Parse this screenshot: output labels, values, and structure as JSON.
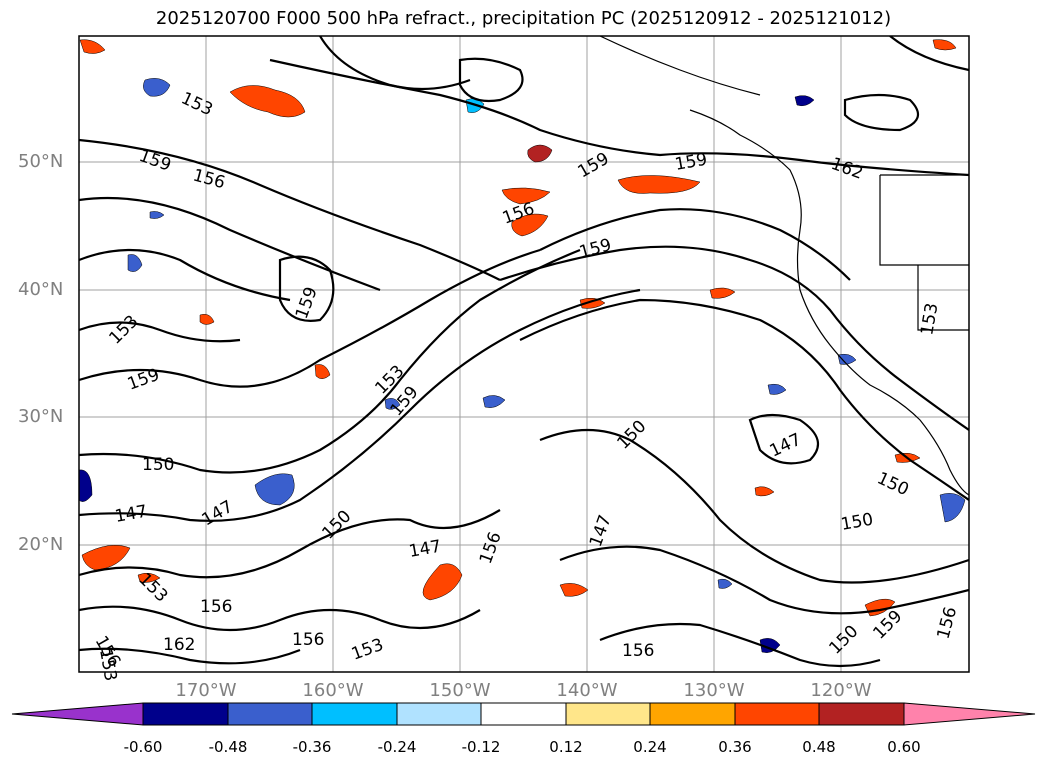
{
  "title": "2025120700 F000 500 hPa refract., precipitation PC (2025120912 - 2025121012)",
  "lat_labels": [
    "50°N",
    "40°N",
    "30°N",
    "20°N"
  ],
  "lon_labels": [
    "170°W",
    "160°W",
    "150°W",
    "140°W",
    "130°W",
    "120°W"
  ],
  "colorbar": {
    "ticks": [
      "-0.60",
      "-0.48",
      "-0.36",
      "-0.24",
      "-0.12",
      "0.12",
      "0.24",
      "0.36",
      "0.48",
      "0.60"
    ],
    "colors": [
      "#9932cc",
      "#00008b",
      "#3a5fcd",
      "#00bfff",
      "#b0e2ff",
      "#ffffff",
      "#ffe68a",
      "#ffa500",
      "#ff4500",
      "#b22222",
      "#ff82ab"
    ]
  },
  "contour_labels": [
    "153",
    "159",
    "156",
    "159",
    "156",
    "159",
    "159",
    "159",
    "153",
    "159",
    "150",
    "147",
    "147",
    "150",
    "147",
    "156",
    "153",
    "159",
    "150",
    "147",
    "150",
    "150",
    "156",
    "162",
    "156",
    "153",
    "156",
    "153",
    "156",
    "147",
    "156",
    "153",
    "162",
    "153",
    "150",
    "159"
  ]
}
